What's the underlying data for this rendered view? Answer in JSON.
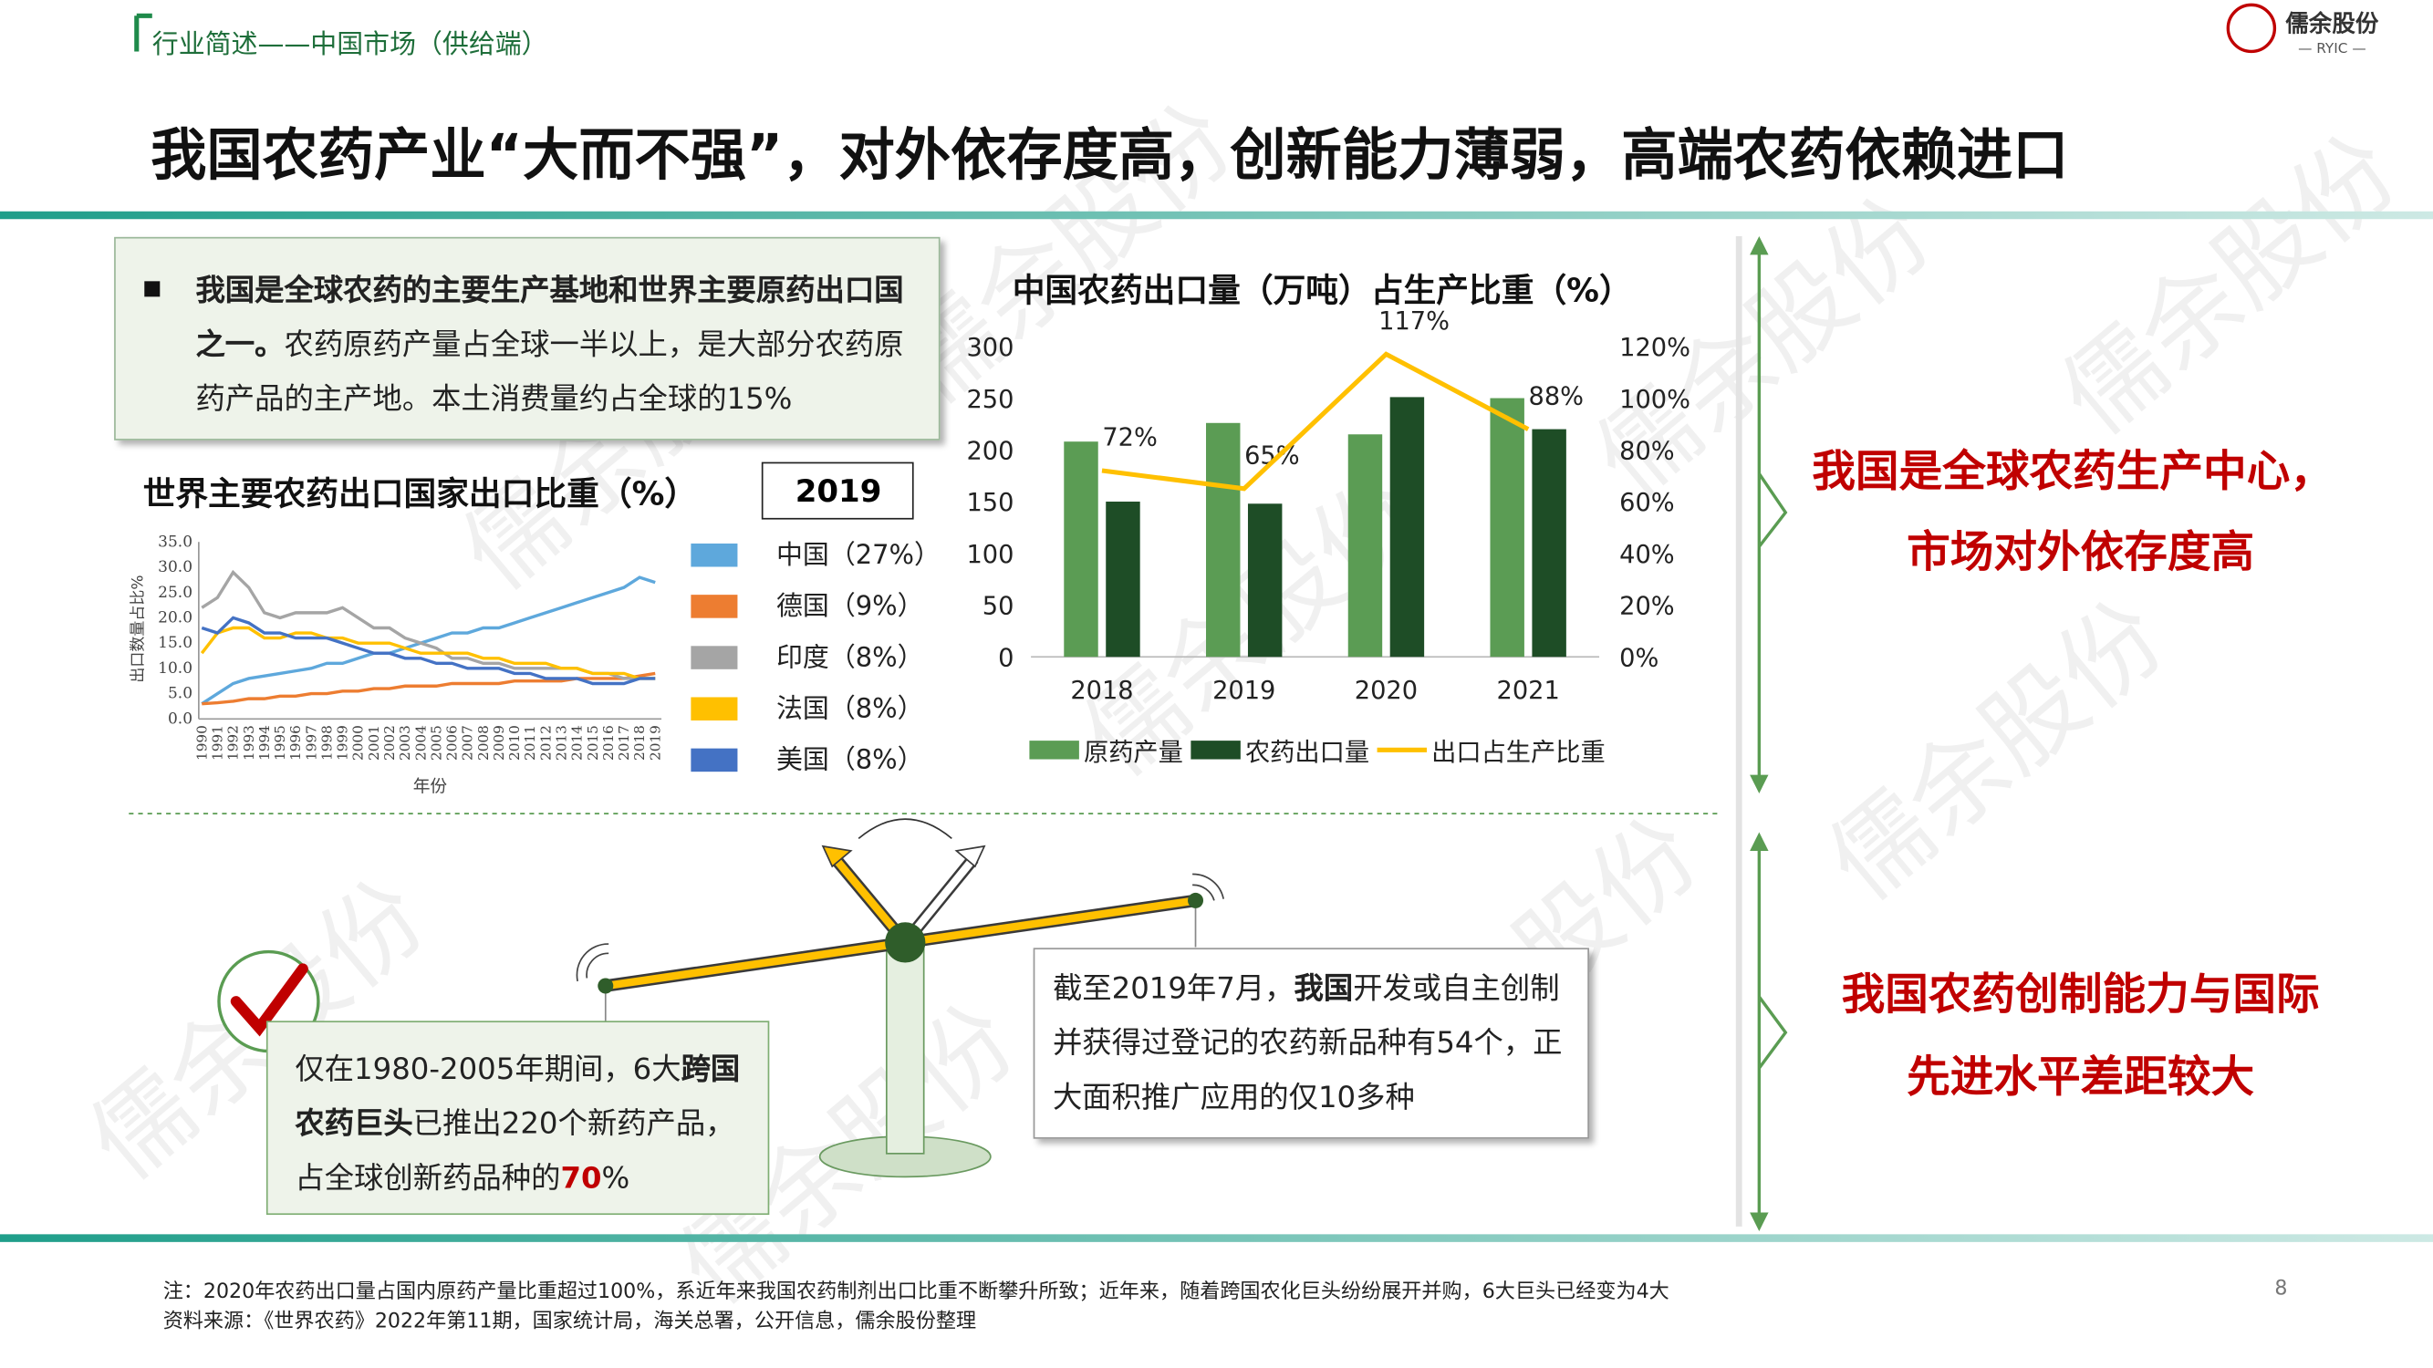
{
  "header": {
    "section": "行业简述——中国市场（供给端）",
    "logo_name": "儒余股份",
    "logo_sub": "— RYIC —",
    "title": "我国农药产业“大而不强”，对外依存度高，创新能力薄弱，高端农药依赖进口"
  },
  "watermark": "儒余股份",
  "intro": {
    "bold": "我国是全球农药的主要生产基地和世界主要原药出口国之一。",
    "text": "农药原药产量占全球一半以上，是大部分农药原药产品的主产地。本土消费量约占全球的15%"
  },
  "chart_data": [
    {
      "type": "line",
      "title": "世界主要农药出口国家出口比重（%）",
      "badge": "2019",
      "y_label": "出口数量占比%",
      "x_label": "年份",
      "categories": [
        "1990",
        "1991",
        "1992",
        "1993",
        "1994",
        "1995",
        "1996",
        "1997",
        "1998",
        "1999",
        "2000",
        "2001",
        "2002",
        "2003",
        "2004",
        "2005",
        "2006",
        "2007",
        "2008",
        "2009",
        "2010",
        "2011",
        "2012",
        "2013",
        "2014",
        "2015",
        "2016",
        "2017",
        "2018",
        "2019"
      ],
      "series": [
        {
          "name": "中国（27%）",
          "color": "#5ea8dc",
          "values": [
            3,
            5,
            7,
            8,
            8.5,
            9,
            9.5,
            10,
            11,
            11,
            12,
            13,
            13,
            14,
            15,
            16,
            17,
            17,
            18,
            18,
            19,
            20,
            21,
            22,
            23,
            24,
            25,
            26,
            28,
            27
          ]
        },
        {
          "name": "德国（9%）",
          "color": "#ed7d31",
          "values": [
            3,
            3.2,
            3.5,
            4,
            4,
            4.5,
            4.5,
            5,
            5,
            5.5,
            5.5,
            6,
            6,
            6.5,
            6.5,
            6.5,
            7,
            7,
            7,
            7,
            7.5,
            7.5,
            7.5,
            7.5,
            8,
            8,
            8,
            8,
            8.5,
            9
          ]
        },
        {
          "name": "印度（8%）",
          "color": "#a5a5a5",
          "values": [
            22,
            24,
            29,
            26,
            21,
            20,
            21,
            21,
            21,
            22,
            20,
            18,
            18,
            16,
            15,
            14,
            12,
            12,
            11,
            11,
            10,
            10,
            10,
            10,
            10,
            9,
            9,
            8,
            8,
            8
          ]
        },
        {
          "name": "法国（8%）",
          "color": "#ffc000",
          "values": [
            13,
            17,
            18,
            18,
            16,
            16,
            17,
            17,
            16,
            16,
            15,
            15,
            15,
            14,
            13,
            13,
            13,
            13,
            12,
            12,
            11,
            11,
            11,
            10,
            10,
            9,
            9,
            9,
            8,
            8
          ]
        },
        {
          "name": "美国（8%）",
          "color": "#4472c4",
          "values": [
            18,
            17,
            20,
            19,
            17,
            17,
            16,
            16,
            16,
            15,
            14,
            13,
            13,
            12,
            12,
            11,
            11,
            10,
            10,
            10,
            9,
            9,
            8,
            8,
            8,
            7,
            7,
            7,
            8,
            8
          ]
        }
      ],
      "ylim": [
        0,
        35
      ],
      "yticks": [
        {
          "value": 0,
          "label": "0.0"
        },
        {
          "value": 5,
          "label": "5.0"
        },
        {
          "value": 10,
          "label": "10.0"
        },
        {
          "value": 15,
          "label": "15.0"
        },
        {
          "value": 20,
          "label": "20.0"
        },
        {
          "value": 25,
          "label": "25.0"
        },
        {
          "value": 30,
          "label": "30.0"
        },
        {
          "value": 35,
          "label": "35.0"
        }
      ]
    },
    {
      "type": "bar",
      "title": "中国农药出口量（万吨）占生产比重（%）",
      "categories": [
        "2018",
        "2019",
        "2020",
        "2021"
      ],
      "series": [
        {
          "name": "原药产量",
          "color": "#5b9c54",
          "values": [
            208,
            226,
            215,
            250
          ]
        },
        {
          "name": "农药出口量",
          "color": "#1e4d26",
          "values": [
            150,
            148,
            251,
            220
          ]
        },
        {
          "name": "出口占生产比重",
          "color": "#ffc000",
          "axis": "y2",
          "values": [
            72,
            65,
            117,
            88
          ],
          "value_labels": [
            "72%",
            "65%",
            "117%",
            "88%"
          ]
        }
      ],
      "ylim": [
        0,
        300
      ],
      "yticks": [
        0,
        50,
        100,
        150,
        200,
        250,
        300
      ],
      "y2lim": [
        0,
        120
      ],
      "y2ticks": [
        {
          "value": 0,
          "label": "0%"
        },
        {
          "value": 20,
          "label": "20%"
        },
        {
          "value": 40,
          "label": "40%"
        },
        {
          "value": 60,
          "label": "60%"
        },
        {
          "value": 80,
          "label": "80%"
        },
        {
          "value": 100,
          "label": "100%"
        },
        {
          "value": 120,
          "label": "120%"
        }
      ]
    }
  ],
  "conclusions": [
    [
      "我国是全球农药生产中心，",
      "市场对外依存度高"
    ],
    [
      "我国农药创制能力与国际",
      "先进水平差距较大"
    ]
  ],
  "innovation_left": [
    "仅在1980-2005年期间，6大",
    "跨国农药巨头",
    "已推出220个新药产品，占全球创新药品种的",
    "70",
    "%"
  ],
  "innovation_right": [
    "截至2019年7月，",
    "我国",
    "开发或自主创制并获得过登记的农药新品种有54个，正大面积推广应用的仅10多种"
  ],
  "footer": {
    "note": "注：2020年农药出口量占国内原药产量比重超过100%，系近年来我国农药制剂出口比重不断攀升所致；近年来，随着跨国农化巨头纷纷展开并购，6大巨头已经变为4大",
    "source": "资料来源：《世界农药》2022年第11期，国家统计局，海关总署，公开信息，儒余股份整理",
    "page": "8"
  }
}
